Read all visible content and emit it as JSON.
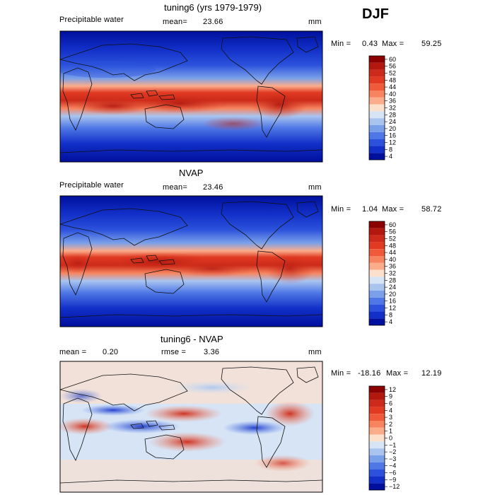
{
  "season": "DJF",
  "chart_data": [
    {
      "type": "heatmap",
      "title": "tuning6 (yrs 1979-1979)",
      "variable": "Precipitable water",
      "units": "mm",
      "mean_label": "mean=",
      "mean": "23.66",
      "min_label": "Min =",
      "min": "0.43",
      "max_label": "Max =",
      "max": "59.25",
      "colorbar_levels": [
        "60",
        "56",
        "52",
        "48",
        "44",
        "40",
        "36",
        "32",
        "28",
        "24",
        "20",
        "16",
        "12",
        "8",
        "4"
      ],
      "colorbar_colors": [
        "#8b0000",
        "#b2180e",
        "#cc2a1a",
        "#e03a22",
        "#ee5a3a",
        "#f7845e",
        "#fbac8a",
        "#fde0cc",
        "#d6e4f6",
        "#a9c4ef",
        "#7aa0ea",
        "#4f78e6",
        "#2c52dc",
        "#1230c8",
        "#000f9c"
      ]
    },
    {
      "type": "heatmap",
      "title": "NVAP",
      "variable": "Precipitable water",
      "units": "mm",
      "mean_label": "mean=",
      "mean": "23.46",
      "min_label": "Min =",
      "min": "1.04",
      "max_label": "Max =",
      "max": "58.72",
      "colorbar_levels": [
        "60",
        "56",
        "52",
        "48",
        "44",
        "40",
        "36",
        "32",
        "28",
        "24",
        "20",
        "16",
        "12",
        "8",
        "4"
      ],
      "colorbar_colors": [
        "#8b0000",
        "#b2180e",
        "#cc2a1a",
        "#e03a22",
        "#ee5a3a",
        "#f7845e",
        "#fbac8a",
        "#fde0cc",
        "#d6e4f6",
        "#a9c4ef",
        "#7aa0ea",
        "#4f78e6",
        "#2c52dc",
        "#1230c8",
        "#000f9c"
      ]
    },
    {
      "type": "heatmap",
      "title": "tuning6 - NVAP",
      "variable": "",
      "units": "mm",
      "mean_label": "mean =",
      "mean": "0.20",
      "rmse_label": "rmse =",
      "rmse": "3.36",
      "min_label": "Min =",
      "min": "-18.16",
      "max_label": "Max =",
      "max": "12.19",
      "colorbar_levels": [
        "12",
        "9",
        "6",
        "4",
        "3",
        "2",
        "1",
        "0",
        "−1",
        "−2",
        "−3",
        "−4",
        "−6",
        "−9",
        "−12"
      ],
      "colorbar_colors": [
        "#8b0000",
        "#b2180e",
        "#cc2a1a",
        "#e03a22",
        "#ee5a3a",
        "#f7845e",
        "#fbac8a",
        "#fde0cc",
        "#d6e4f6",
        "#a9c4ef",
        "#7aa0ea",
        "#4f78e6",
        "#2c52dc",
        "#1230c8",
        "#000f9c"
      ]
    }
  ]
}
